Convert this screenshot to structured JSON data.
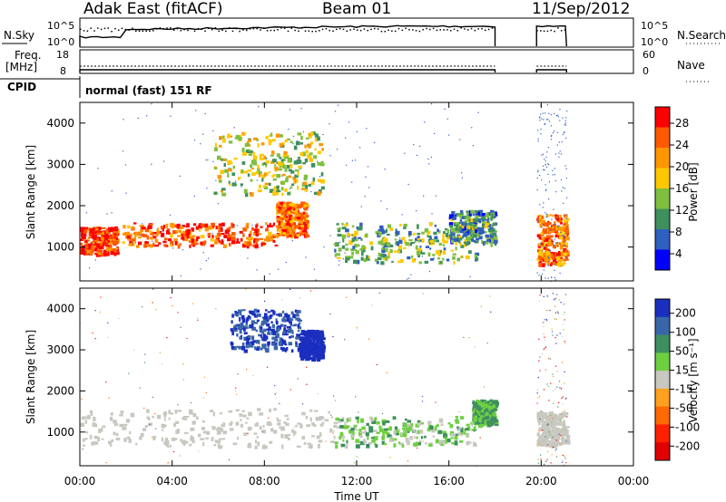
{
  "header": {
    "station": "Adak East (fitACF)",
    "beam": "Beam 01",
    "date": "11/Sep/2012"
  },
  "noise_panel": {
    "left_label": "N.Sky",
    "right_label": "N.Search",
    "left_ticks": [
      "10^5",
      "10^0"
    ],
    "right_ticks": [
      "10^5",
      "10^0"
    ]
  },
  "freq_panel": {
    "left_label_line1": "Freq.",
    "left_label_line2": "[MHz]",
    "right_label": "Nave",
    "left_ticks": [
      "18",
      "8"
    ],
    "right_ticks": [
      "60",
      "0"
    ]
  },
  "cpid": {
    "label": "CPID",
    "value": "normal (fast) 151 RF"
  },
  "power_panel": {
    "ylabel": "Slant Range [km]",
    "yticks": [
      "4000",
      "3000",
      "2000",
      "1000"
    ],
    "colorbar_label": "Power [dB]",
    "colorbar_ticks": [
      "28",
      "24",
      "20",
      "16",
      "12",
      "8",
      "4"
    ],
    "colors": [
      "#ff0000",
      "#ff5a00",
      "#ff9600",
      "#ffc800",
      "#7fbf3f",
      "#3f8f5f",
      "#2f5fbf",
      "#0000ff"
    ]
  },
  "velocity_panel": {
    "ylabel": "Slant Range [km]",
    "yticks": [
      "4000",
      "3000",
      "2000",
      "1000"
    ],
    "colorbar_label": "Velocity [m s⁻¹]",
    "colorbar_ticks": [
      "200",
      "100",
      "50",
      "15",
      "-15",
      "-50",
      "-100",
      "-200"
    ],
    "colors": [
      "#1a2fbf",
      "#3a66a8",
      "#3e8f5f",
      "#6ed040",
      "#c8c8c0",
      "#ffa020",
      "#ff6a00",
      "#ff2000",
      "#e00000"
    ]
  },
  "xaxis": {
    "label": "Time UT",
    "ticks": [
      "00:00",
      "04:00",
      "08:00",
      "12:00",
      "16:00",
      "20:00",
      "00:00"
    ]
  },
  "chart_data": {
    "type": "heatmap",
    "x_range_hours": [
      0,
      24
    ],
    "y_range_km": [
      180,
      4500
    ],
    "coverage_segments_hours": [
      [
        0,
        18.0
      ],
      [
        19.8,
        21.1
      ]
    ],
    "power_features": [
      {
        "t0": 0.0,
        "t1": 1.6,
        "r0": 850,
        "r1": 1500,
        "level": 26
      },
      {
        "t0": 1.8,
        "t1": 8.5,
        "r0": 1050,
        "r1": 1600,
        "level": 24
      },
      {
        "t0": 8.5,
        "t1": 9.8,
        "r0": 1300,
        "r1": 2100,
        "level": 22
      },
      {
        "t0": 5.8,
        "t1": 10.5,
        "r0": 2300,
        "r1": 3800,
        "level": 14
      },
      {
        "t0": 11.0,
        "t1": 17.2,
        "r0": 650,
        "r1": 1600,
        "level": 10
      },
      {
        "t0": 16.0,
        "t1": 18.0,
        "r0": 1100,
        "r1": 1900,
        "level": 8
      },
      {
        "t0": 19.8,
        "t1": 21.1,
        "r0": 600,
        "r1": 1800,
        "level": 22
      }
    ],
    "velocity_features": [
      {
        "t0": 0.0,
        "t1": 11.0,
        "r0": 650,
        "r1": 1600,
        "v": 0
      },
      {
        "t0": 6.5,
        "t1": 9.5,
        "r0": 3000,
        "r1": 4000,
        "v": 150
      },
      {
        "t0": 9.5,
        "t1": 10.5,
        "r0": 2800,
        "r1": 3500,
        "v": 200
      },
      {
        "t0": 11.0,
        "t1": 17.2,
        "r0": 700,
        "r1": 1400,
        "v": 20
      },
      {
        "t0": 17.0,
        "t1": 18.0,
        "r0": 1200,
        "r1": 1800,
        "v": 30
      },
      {
        "t0": 19.8,
        "t1": 21.1,
        "r0": 700,
        "r1": 1500,
        "v": 0
      }
    ]
  }
}
